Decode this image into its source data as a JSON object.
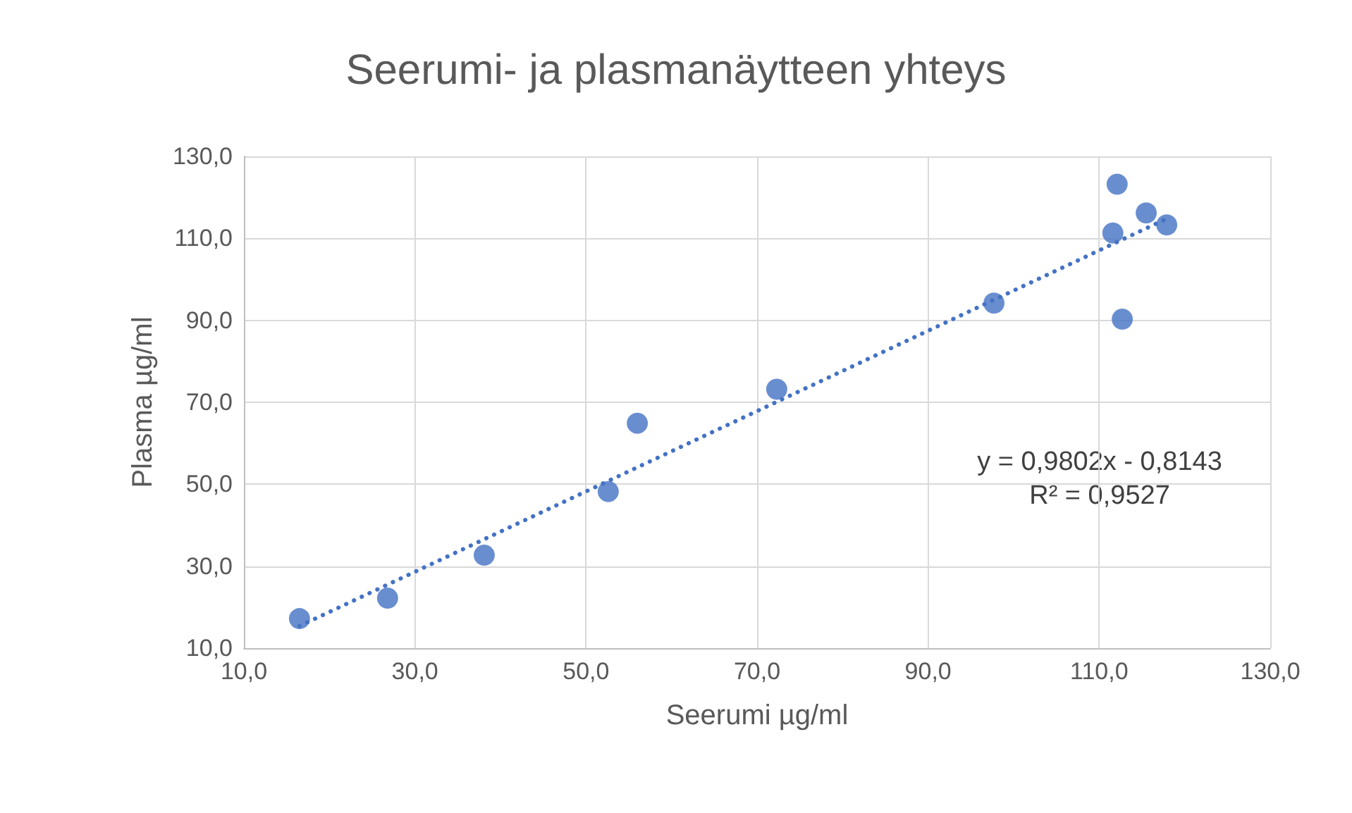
{
  "chart_data": {
    "type": "scatter",
    "title": "Seerumi- ja plasmanäytteen yhteys",
    "xlabel": "Seerumi µg/ml",
    "ylabel": "Plasma µg/ml",
    "series": [
      {
        "type": "scatter",
        "color": "#4472c4",
        "x": [
          16.5,
          26.8,
          38.1,
          52.6,
          56.0,
          72.3,
          97.7,
          112.1,
          111.6,
          115.5,
          117.9,
          112.7
        ],
        "values": [
          17.2,
          22.2,
          32.7,
          48.2,
          64.9,
          73.2,
          94.2,
          123.2,
          111.3,
          116.2,
          113.3,
          90.3
        ],
        "marker": "circle"
      },
      {
        "type": "line",
        "color": "#4472c4",
        "x": [
          16.5,
          117.9
        ],
        "values": [
          15.4,
          114.8
        ],
        "line_style": "dotted",
        "marker": "none"
      }
    ],
    "xlim": [
      10,
      130
    ],
    "ylim": [
      10,
      130
    ],
    "xticks": [
      {
        "value": 10,
        "label": "10,0"
      },
      {
        "value": 30,
        "label": "30,0"
      },
      {
        "value": 50,
        "label": "50,0"
      },
      {
        "value": 70,
        "label": "70,0"
      },
      {
        "value": 90,
        "label": "90,0"
      },
      {
        "value": 110,
        "label": "110,0"
      },
      {
        "value": 130,
        "label": "130,0"
      }
    ],
    "yticks": [
      {
        "value": 10,
        "label": "10,0"
      },
      {
        "value": 30,
        "label": "30,0"
      },
      {
        "value": 50,
        "label": "50,0"
      },
      {
        "value": 70,
        "label": "70,0"
      },
      {
        "value": 90,
        "label": "90,0"
      },
      {
        "value": 110,
        "label": "110,0"
      },
      {
        "value": 130,
        "label": "130,0"
      }
    ],
    "annotations": [
      "y = 0,9802x - 0,8143\nR² = 0,9527"
    ],
    "grid": true
  }
}
